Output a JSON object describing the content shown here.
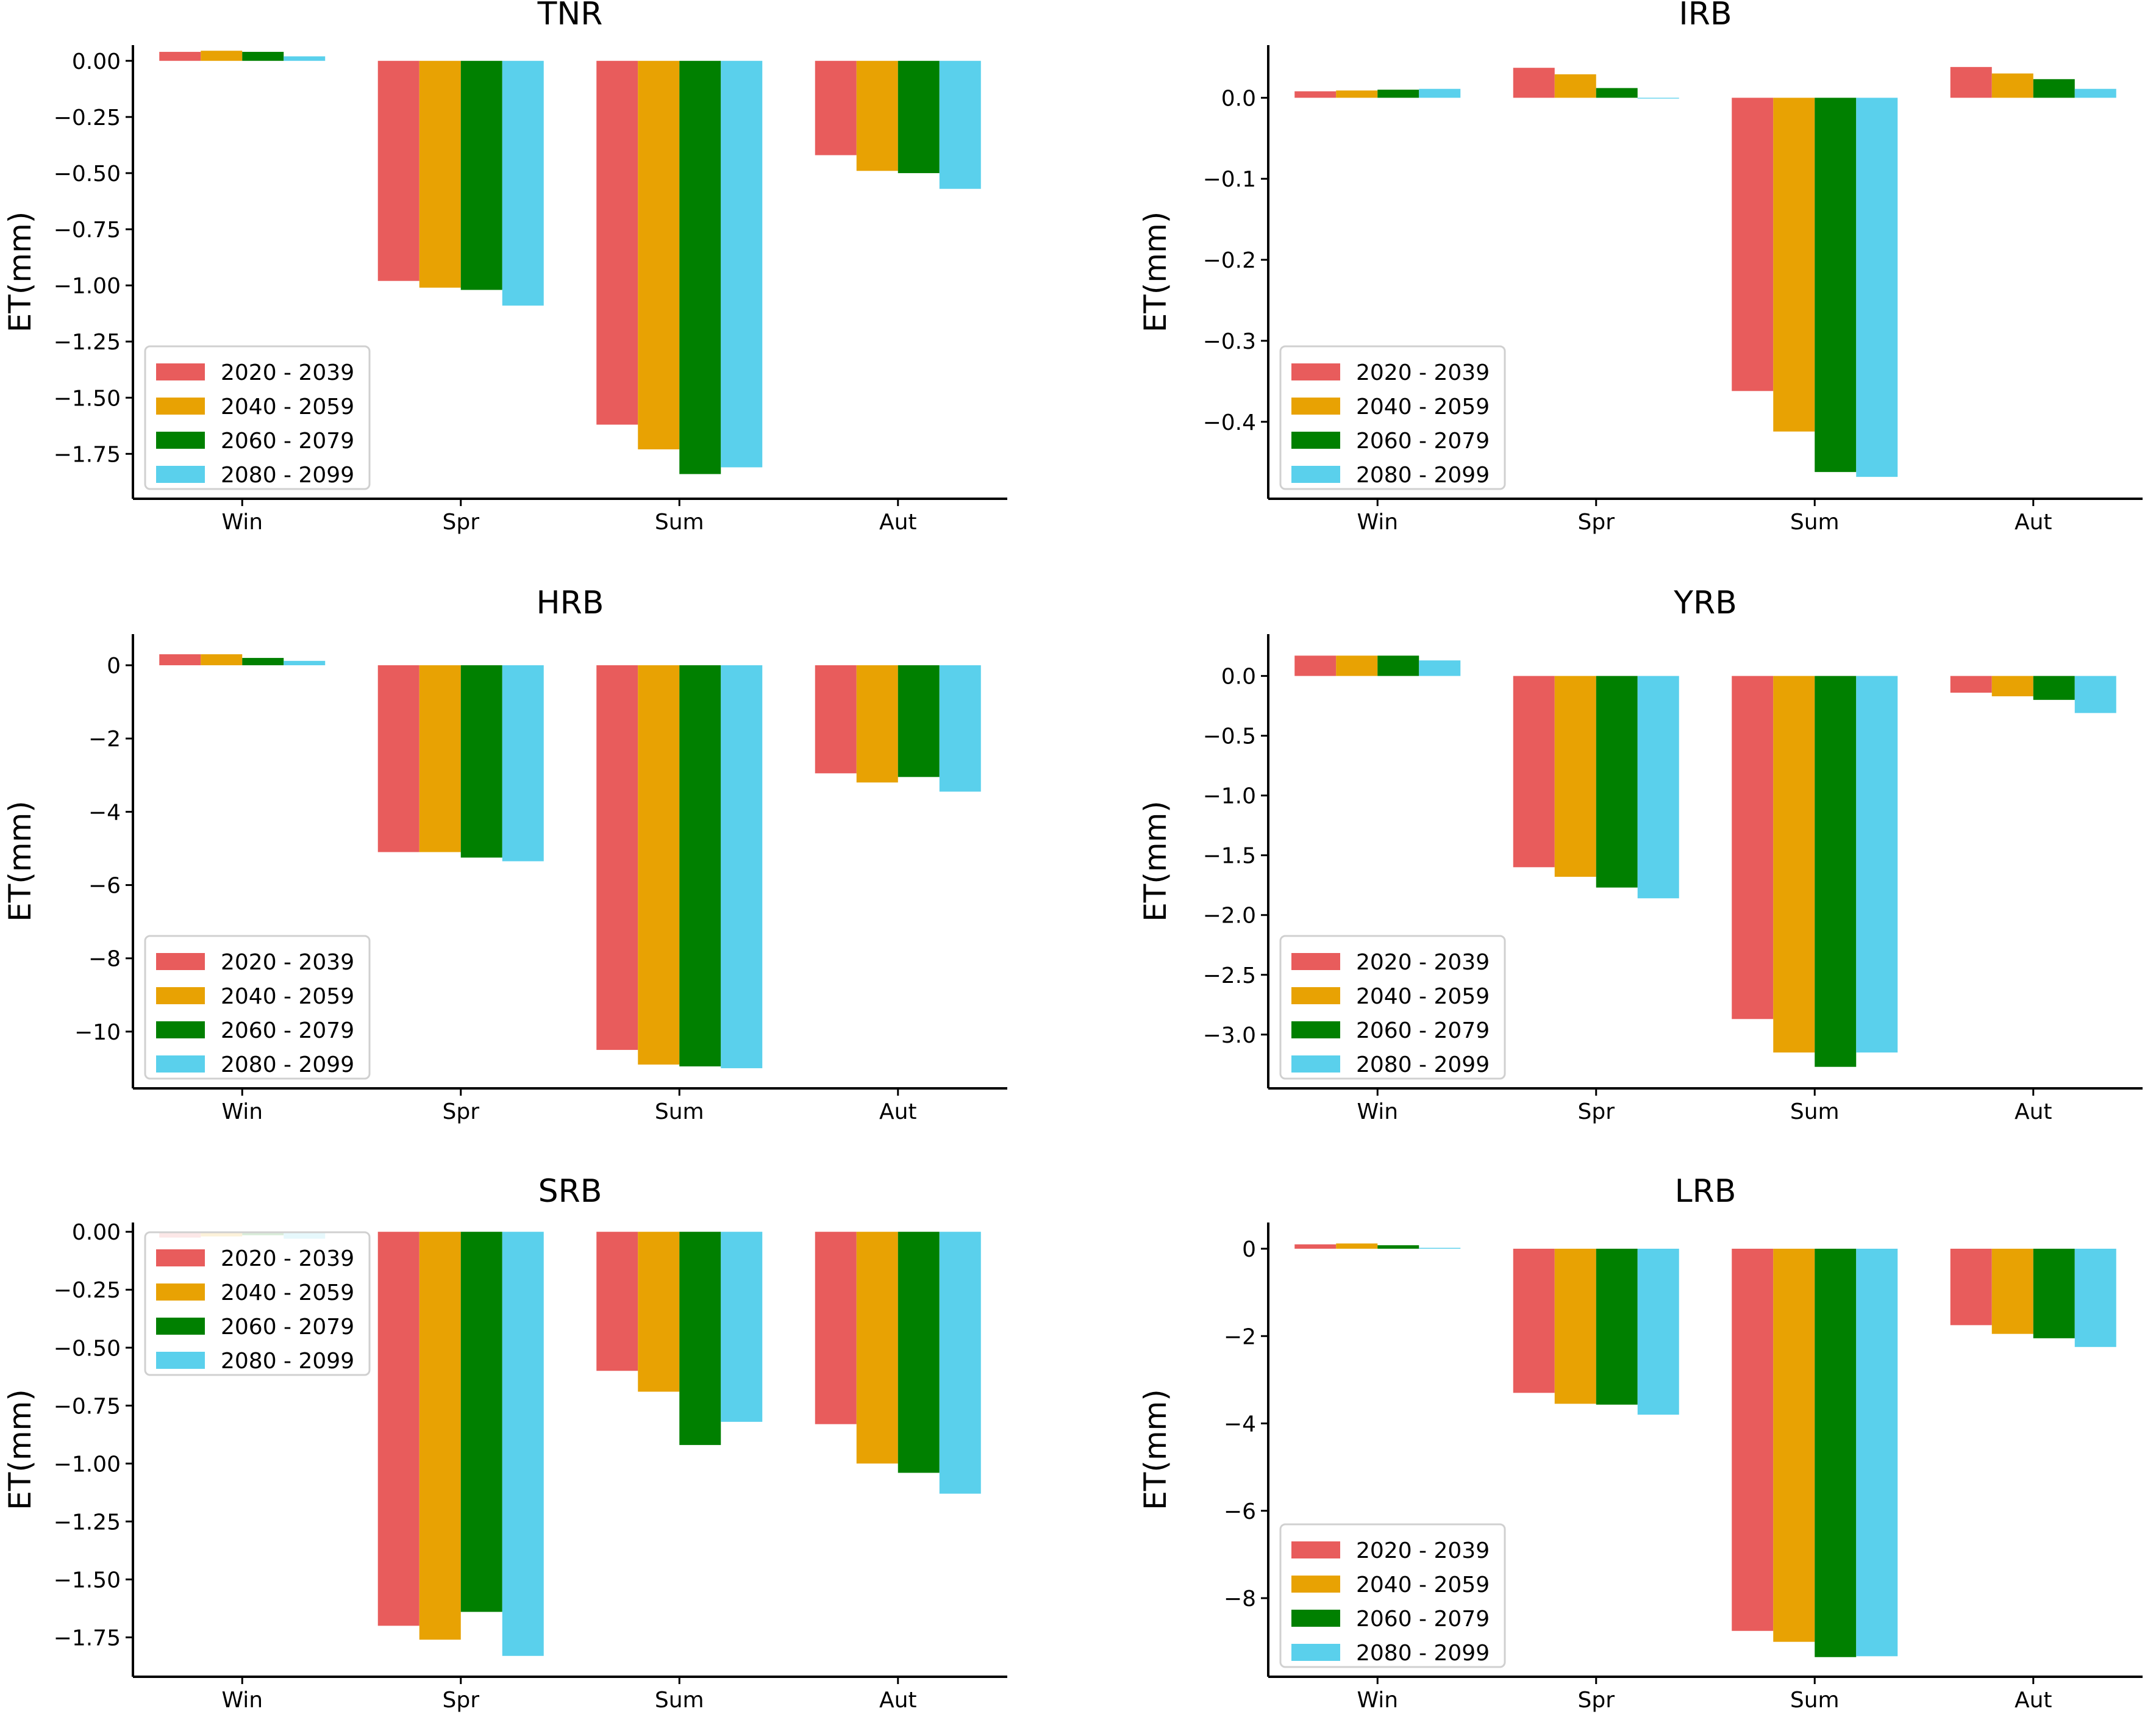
{
  "figure": {
    "series_names": [
      "2020 - 2039",
      "2040 - 2059",
      "2060 - 2079",
      "2080 - 2099"
    ],
    "colors": [
      "#e85c5c",
      "#e8a203",
      "#008000",
      "#5ad0ec"
    ]
  },
  "chart_data": [
    {
      "type": "bar",
      "title": "TNR",
      "xlabel": "",
      "ylabel": "ET(mm)",
      "categories": [
        "Win",
        "Spr",
        "Sum",
        "Aut"
      ],
      "ylim": [
        -1.95,
        0.07
      ],
      "yticks": [
        0.0,
        -0.25,
        -0.5,
        -0.75,
        -1.0,
        -1.25,
        -1.5,
        -1.75
      ],
      "ytick_labels": [
        "0.00",
        "−0.25",
        "−0.50",
        "−0.75",
        "−1.00",
        "−1.25",
        "−1.50",
        "−1.75"
      ],
      "legend": "lower-left",
      "series": [
        {
          "name": "2020 - 2039",
          "values": [
            0.04,
            -0.98,
            -1.62,
            -0.42
          ]
        },
        {
          "name": "2040 - 2059",
          "values": [
            0.045,
            -1.01,
            -1.73,
            -0.49
          ]
        },
        {
          "name": "2060 - 2079",
          "values": [
            0.04,
            -1.02,
            -1.84,
            -0.5
          ]
        },
        {
          "name": "2080 - 2099",
          "values": [
            0.02,
            -1.09,
            -1.81,
            -0.57
          ]
        }
      ]
    },
    {
      "type": "bar",
      "title": "IRB",
      "xlabel": "",
      "ylabel": "ET(mm)",
      "categories": [
        "Win",
        "Spr",
        "Sum",
        "Aut"
      ],
      "ylim": [
        -0.495,
        0.065
      ],
      "yticks": [
        0.0,
        -0.1,
        -0.2,
        -0.3,
        -0.4
      ],
      "ytick_labels": [
        "0.0",
        "−0.1",
        "−0.2",
        "−0.3",
        "−0.4"
      ],
      "legend": "lower-left",
      "series": [
        {
          "name": "2020 - 2039",
          "values": [
            0.008,
            0.037,
            -0.362,
            0.038
          ]
        },
        {
          "name": "2040 - 2059",
          "values": [
            0.009,
            0.029,
            -0.412,
            0.03
          ]
        },
        {
          "name": "2060 - 2079",
          "values": [
            0.01,
            0.012,
            -0.462,
            0.023
          ]
        },
        {
          "name": "2080 - 2099",
          "values": [
            0.011,
            -0.001,
            -0.468,
            0.011
          ]
        }
      ]
    },
    {
      "type": "bar",
      "title": "HRB",
      "xlabel": "",
      "ylabel": "ET(mm)",
      "categories": [
        "Win",
        "Spr",
        "Sum",
        "Aut"
      ],
      "ylim": [
        -11.55,
        0.85
      ],
      "yticks": [
        0,
        -2,
        -4,
        -6,
        -8,
        -10
      ],
      "ytick_labels": [
        "0",
        "−2",
        "−4",
        "−6",
        "−8",
        "−10"
      ],
      "legend": "lower-left",
      "series": [
        {
          "name": "2020 - 2039",
          "values": [
            0.3,
            -5.1,
            -10.5,
            -2.95
          ]
        },
        {
          "name": "2040 - 2059",
          "values": [
            0.3,
            -5.1,
            -10.9,
            -3.2
          ]
        },
        {
          "name": "2060 - 2079",
          "values": [
            0.2,
            -5.25,
            -10.95,
            -3.05
          ]
        },
        {
          "name": "2080 - 2099",
          "values": [
            0.12,
            -5.35,
            -11.0,
            -3.45
          ]
        }
      ]
    },
    {
      "type": "bar",
      "title": "YRB",
      "xlabel": "",
      "ylabel": "ET(mm)",
      "categories": [
        "Win",
        "Spr",
        "Sum",
        "Aut"
      ],
      "ylim": [
        -3.45,
        0.35
      ],
      "yticks": [
        0.0,
        -0.5,
        -1.0,
        -1.5,
        -2.0,
        -2.5,
        -3.0
      ],
      "ytick_labels": [
        "0.0",
        "−0.5",
        "−1.0",
        "−1.5",
        "−2.0",
        "−2.5",
        "−3.0"
      ],
      "legend": "lower-left",
      "series": [
        {
          "name": "2020 - 2039",
          "values": [
            0.17,
            -1.6,
            -2.87,
            -0.14
          ]
        },
        {
          "name": "2040 - 2059",
          "values": [
            0.17,
            -1.68,
            -3.15,
            -0.17
          ]
        },
        {
          "name": "2060 - 2079",
          "values": [
            0.17,
            -1.77,
            -3.27,
            -0.2
          ]
        },
        {
          "name": "2080 - 2099",
          "values": [
            0.13,
            -1.86,
            -3.15,
            -0.31
          ]
        }
      ]
    },
    {
      "type": "bar",
      "title": "SRB",
      "xlabel": "",
      "ylabel": "ET(mm)",
      "categories": [
        "Win",
        "Spr",
        "Sum",
        "Aut"
      ],
      "ylim": [
        -1.92,
        0.04
      ],
      "yticks": [
        0.0,
        -0.25,
        -0.5,
        -0.75,
        -1.0,
        -1.25,
        -1.5,
        -1.75
      ],
      "ytick_labels": [
        "0.00",
        "−0.25",
        "−0.50",
        "−0.75",
        "−1.00",
        "−1.25",
        "−1.50",
        "−1.75"
      ],
      "legend": "upper-left",
      "series": [
        {
          "name": "2020 - 2039",
          "values": [
            -0.025,
            -1.7,
            -0.6,
            -0.83
          ]
        },
        {
          "name": "2040 - 2059",
          "values": [
            -0.02,
            -1.76,
            -0.69,
            -1.0
          ]
        },
        {
          "name": "2060 - 2079",
          "values": [
            -0.015,
            -1.64,
            -0.92,
            -1.04
          ]
        },
        {
          "name": "2080 - 2099",
          "values": [
            -0.03,
            -1.83,
            -0.82,
            -1.13
          ]
        }
      ]
    },
    {
      "type": "bar",
      "title": "LRB",
      "xlabel": "",
      "ylabel": "ET(mm)",
      "categories": [
        "Win",
        "Spr",
        "Sum",
        "Aut"
      ],
      "ylim": [
        -9.8,
        0.6
      ],
      "yticks": [
        0,
        -2,
        -4,
        -6,
        -8
      ],
      "ytick_labels": [
        "0",
        "−2",
        "−4",
        "−6",
        "−8"
      ],
      "legend": "lower-left",
      "series": [
        {
          "name": "2020 - 2039",
          "values": [
            0.1,
            -3.3,
            -8.75,
            -1.75
          ]
        },
        {
          "name": "2040 - 2059",
          "values": [
            0.12,
            -3.55,
            -9.0,
            -1.95
          ]
        },
        {
          "name": "2060 - 2079",
          "values": [
            0.08,
            -3.57,
            -9.35,
            -2.05
          ]
        },
        {
          "name": "2080 - 2099",
          "values": [
            0.02,
            -3.8,
            -9.33,
            -2.25
          ]
        }
      ]
    }
  ]
}
